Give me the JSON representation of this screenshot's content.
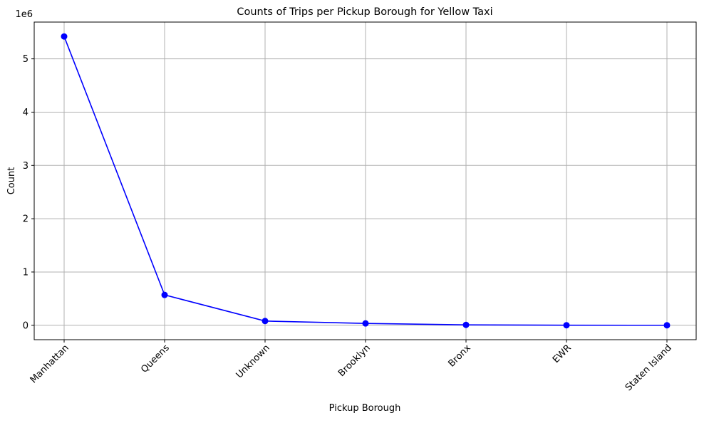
{
  "chart_data": {
    "type": "line",
    "title": "Counts of Trips per Pickup Borough for Yellow Taxi",
    "xlabel": "Pickup Borough",
    "ylabel": "Count",
    "y_offset_label": "1e6",
    "categories": [
      "Manhattan",
      "Queens",
      "Unknown",
      "Brooklyn",
      "Bronx",
      "EWR",
      "Staten Island"
    ],
    "series": [
      {
        "values": [
          5420000,
          570000,
          80000,
          35000,
          8000,
          1000,
          500
        ],
        "color": "#0000ff",
        "marker": "circle"
      }
    ],
    "y_ticks": [
      0,
      1,
      2,
      3,
      4,
      5
    ],
    "ylim": [
      -270000,
      5690000
    ],
    "grid": true,
    "x_tick_rotation_deg": 45,
    "legend": "none",
    "grid_color": "#b0b0b0"
  }
}
